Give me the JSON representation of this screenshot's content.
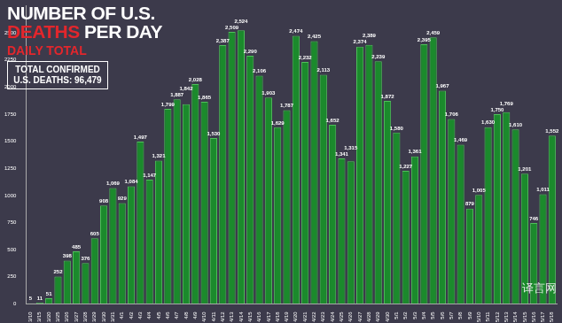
{
  "chart_data": {
    "type": "bar",
    "title": "NUMBER OF U.S. DEATHS PER DAY",
    "subtitle": "DAILY TOTAL",
    "annotations": [
      "TOTAL CONFIRMED U.S. DEATHS: 96,479",
      "译言网"
    ],
    "categories": [
      "3/10",
      "3/15",
      "3/20",
      "3/25",
      "3/26",
      "3/27",
      "3/28",
      "3/29",
      "3/30",
      "3/31",
      "4/1",
      "4/2",
      "4/3",
      "4/4",
      "4/5",
      "4/6",
      "4/7",
      "4/8",
      "4/9",
      "4/10",
      "4/11",
      "4/12",
      "4/13",
      "4/14",
      "4/15",
      "4/16",
      "4/17",
      "4/18",
      "4/19",
      "4/20",
      "4/21",
      "4/22",
      "4/23",
      "4/24",
      "4/25",
      "4/26",
      "4/27",
      "4/28",
      "4/29",
      "4/30",
      "5/1",
      "5/2",
      "5/3",
      "5/4",
      "5/5",
      "5/6",
      "5/7",
      "5/8",
      "5/9",
      "5/10",
      "5/11",
      "5/12",
      "5/13",
      "5/14",
      "5/15",
      "5/16",
      "5/17",
      "5/18"
    ],
    "values": [
      5,
      11,
      51,
      252,
      398,
      485,
      376,
      605,
      908,
      1069,
      929,
      1084,
      1497,
      1147,
      1321,
      1799,
      1887,
      1842,
      2028,
      1865,
      1530,
      2387,
      2509,
      2524,
      2290,
      2106,
      1903,
      1629,
      1787,
      2474,
      2232,
      2425,
      2113,
      1652,
      1341,
      1315,
      2374,
      2389,
      2239,
      1872,
      1580,
      1227,
      1361,
      2395,
      2459,
      1967,
      1706,
      1469,
      879,
      1005,
      1630,
      1750,
      1769,
      1610,
      1201,
      746,
      1011,
      1552
    ],
    "value_labels": [
      "5",
      "11",
      "51",
      "252",
      "398",
      "485",
      "376",
      "605",
      "908",
      "1,069",
      "929",
      "1,084",
      "1,497",
      "1,147",
      "1,321",
      "1,799",
      "1,887",
      "1,842",
      "2,028",
      "1,865",
      "1,530",
      "2,387",
      "2,509",
      "2,524",
      "2,290",
      "2,106",
      "1,903",
      "1,629",
      "1,787",
      "2,474",
      "2,232",
      "2,425",
      "2,113",
      "1,652",
      "1,341",
      "1,315",
      "2,374",
      "2,389",
      "2,239",
      "1,872",
      "1,580",
      "1,227",
      "1,361",
      "2,395",
      "2,459",
      "1,967",
      "1,706",
      "1,469",
      "879",
      "1,005",
      "1,630",
      "1,750",
      "1,769",
      "1,610",
      "1,201",
      "746",
      "1,011",
      "1,552"
    ],
    "color": "#1b8a2c",
    "ylim": [
      0,
      2750
    ],
    "yticks": [
      0,
      250,
      500,
      750,
      1000,
      1250,
      1500,
      1750,
      2000,
      2250,
      2500
    ],
    "grid": false,
    "data_labels": true
  }
}
